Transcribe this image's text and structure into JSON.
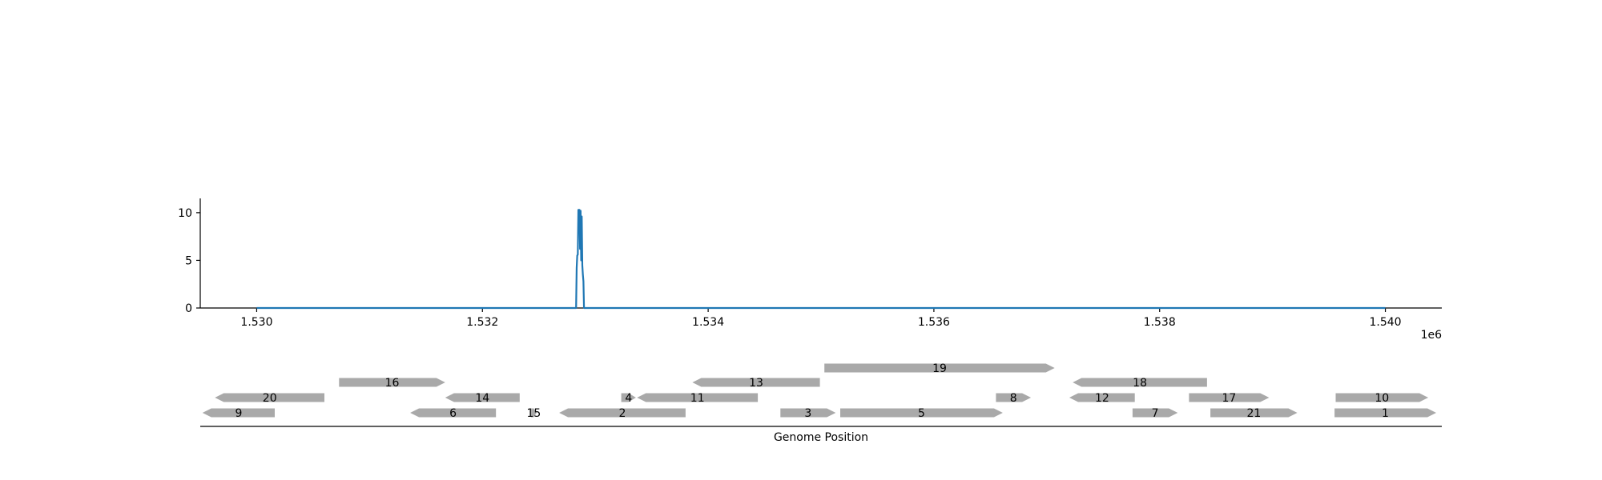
{
  "chart_data": [
    {
      "type": "line",
      "title": "",
      "xlabel": "",
      "ylabel": "",
      "x_offset_label": "1e6",
      "xlim": [
        1.5295,
        1.5405
      ],
      "ylim": [
        0,
        11.5
      ],
      "x_ticks": [
        {
          "value": 1.53,
          "label": "1.530"
        },
        {
          "value": 1.532,
          "label": "1.532"
        },
        {
          "value": 1.534,
          "label": "1.534"
        },
        {
          "value": 1.536,
          "label": "1.536"
        },
        {
          "value": 1.538,
          "label": "1.538"
        },
        {
          "value": 1.54,
          "label": "1.540"
        }
      ],
      "y_ticks": [
        {
          "value": 0,
          "label": "0"
        },
        {
          "value": 5,
          "label": "5"
        },
        {
          "value": 10,
          "label": "10"
        }
      ],
      "grid": false,
      "color": "#1f77b4",
      "series": [
        {
          "x": [
            1.53,
            1.53283,
            1.532835,
            1.53284,
            1.532845,
            1.53285,
            1.532855,
            1.53286,
            1.532865,
            1.53287,
            1.532875,
            1.53288,
            1.532885,
            1.53289,
            1.532895,
            1.5329,
            1.54
          ],
          "y": [
            0,
            0,
            4.2,
            5.5,
            5.6,
            10.3,
            10.3,
            10.3,
            6.2,
            10.2,
            5.0,
            9.6,
            4.5,
            3.5,
            2.8,
            0,
            0
          ]
        }
      ]
    },
    {
      "type": "gene-track",
      "xlabel": "Genome Position",
      "gene_color": "#a9a9a9",
      "genes": [
        {
          "label": "1",
          "start": 1.53955,
          "end": 1.54045,
          "strand": "+",
          "row": 0
        },
        {
          "label": "2",
          "start": 1.53268,
          "end": 1.5338,
          "strand": "-",
          "row": 0
        },
        {
          "label": "3",
          "start": 1.53464,
          "end": 1.53513,
          "strand": "+",
          "row": 0
        },
        {
          "label": "4",
          "start": 1.53323,
          "end": 1.53336,
          "strand": "+",
          "row": 1
        },
        {
          "label": "5",
          "start": 1.53517,
          "end": 1.53661,
          "strand": "+",
          "row": 0
        },
        {
          "label": "6",
          "start": 1.53136,
          "end": 1.53212,
          "strand": "-",
          "row": 0
        },
        {
          "label": "7",
          "start": 1.53776,
          "end": 1.53816,
          "strand": "+",
          "row": 0
        },
        {
          "label": "8",
          "start": 1.53655,
          "end": 1.53686,
          "strand": "+",
          "row": 1
        },
        {
          "label": "9",
          "start": 1.52952,
          "end": 1.53016,
          "strand": "-",
          "row": 0
        },
        {
          "label": "10",
          "start": 1.53956,
          "end": 1.54038,
          "strand": "+",
          "row": 1
        },
        {
          "label": "11",
          "start": 1.53337,
          "end": 1.53444,
          "strand": "-",
          "row": 1
        },
        {
          "label": "12",
          "start": 1.5372,
          "end": 1.53778,
          "strand": "-",
          "row": 1
        },
        {
          "label": "13",
          "start": 1.53386,
          "end": 1.53499,
          "strand": "-",
          "row": 2
        },
        {
          "label": "14",
          "start": 1.53167,
          "end": 1.53233,
          "strand": "-",
          "row": 1
        },
        {
          "label": "15",
          "start": 1.53243,
          "end": 1.53248,
          "strand": "+",
          "row": 0
        },
        {
          "label": "16",
          "start": 1.53073,
          "end": 1.53167,
          "strand": "+",
          "row": 2
        },
        {
          "label": "17",
          "start": 1.53826,
          "end": 1.53897,
          "strand": "+",
          "row": 1
        },
        {
          "label": "18",
          "start": 1.53723,
          "end": 1.53842,
          "strand": "-",
          "row": 2
        },
        {
          "label": "19",
          "start": 1.53503,
          "end": 1.53707,
          "strand": "+",
          "row": 3
        },
        {
          "label": "20",
          "start": 1.52963,
          "end": 1.5306,
          "strand": "-",
          "row": 1
        },
        {
          "label": "21",
          "start": 1.53845,
          "end": 1.53922,
          "strand": "+",
          "row": 0
        }
      ]
    }
  ]
}
